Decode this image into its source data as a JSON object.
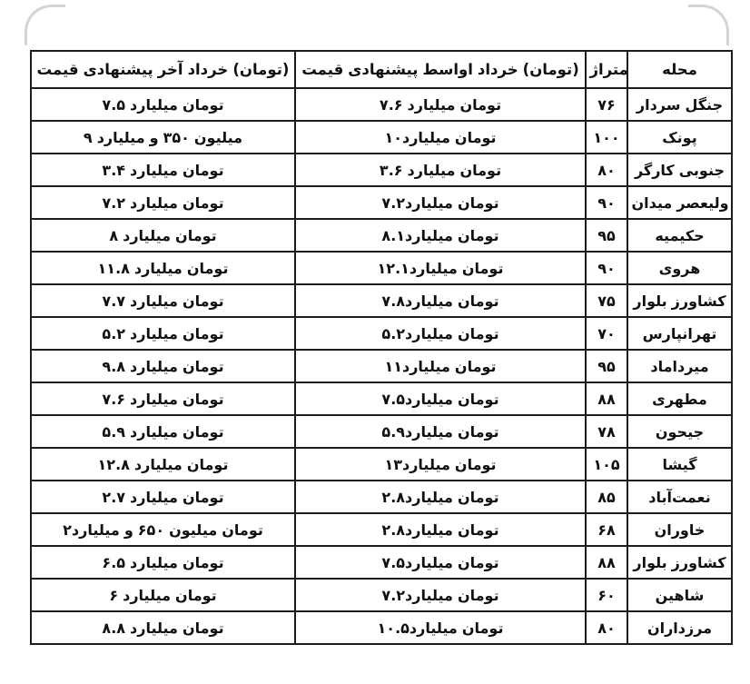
{
  "table": {
    "columns": [
      {
        "key": "neighborhood",
        "label": "محله"
      },
      {
        "key": "area",
        "label": "متراژ"
      },
      {
        "key": "price_mid",
        "label": "قیمت پیشنهادی اواسط خرداد (تومان)"
      },
      {
        "key": "price_end",
        "label": "قیمت پیشنهادی آخر خرداد (تومان)"
      }
    ],
    "rows": [
      {
        "neighborhood": "سردار جنگل",
        "area": "۷۶",
        "price_mid": "۷.۶ میلیارد تومان",
        "price_end": "۷.۵ میلیارد تومان"
      },
      {
        "neighborhood": "پونک",
        "area": "۱۰۰",
        "price_mid": "۱۰میلیارد تومان",
        "price_end": "۹ میلیارد و ۳۵۰ میلیون"
      },
      {
        "neighborhood": "کارگر جنوبی",
        "area": "۸۰",
        "price_mid": "۳.۶ میلیارد تومان",
        "price_end": "۳.۴ میلیارد تومان"
      },
      {
        "neighborhood": "میدان ولیعصر",
        "area": "۹۰",
        "price_mid": "۷.۲میلیارد تومان",
        "price_end": "۷.۲ میلیارد تومان"
      },
      {
        "neighborhood": "حکیمیه",
        "area": "۹۵",
        "price_mid": "۸.۱میلیارد تومان",
        "price_end": "۸ میلیارد تومان"
      },
      {
        "neighborhood": "هروی",
        "area": "۹۰",
        "price_mid": "۱۲.۱میلیارد تومان",
        "price_end": "۱۱.۸ میلیارد تومان"
      },
      {
        "neighborhood": "بلوار کشاورز",
        "area": "۷۵",
        "price_mid": "۷.۸میلیارد تومان",
        "price_end": "۷.۷ میلیارد تومان"
      },
      {
        "neighborhood": "تهرانپارس",
        "area": "۷۰",
        "price_mid": "۵.۲میلیارد تومان",
        "price_end": "۵.۲ میلیارد تومان"
      },
      {
        "neighborhood": "میرداماد",
        "area": "۹۵",
        "price_mid": "۱۱میلیارد تومان",
        "price_end": "۹.۸ میلیارد تومان"
      },
      {
        "neighborhood": "مطهری",
        "area": "۸۸",
        "price_mid": "۷.۵میلیارد تومان",
        "price_end": "۷.۶ میلیارد تومان"
      },
      {
        "neighborhood": "جیحون",
        "area": "۷۸",
        "price_mid": "۵.۹میلیارد تومان",
        "price_end": "۵.۹ میلیارد تومان"
      },
      {
        "neighborhood": "گیشا",
        "area": "۱۰۵",
        "price_mid": "۱۳میلیارد تومان",
        "price_end": "۱۲.۸ میلیارد تومان"
      },
      {
        "neighborhood": "نعمت‌آباد",
        "area": "۸۵",
        "price_mid": "۲.۸میلیارد تومان",
        "price_end": "۲.۷ میلیارد تومان"
      },
      {
        "neighborhood": "خاوران",
        "area": "۶۸",
        "price_mid": "۲.۸میلیارد تومان",
        "price_end": "۲میلیارد و ۶۵۰ میلیون تومان"
      },
      {
        "neighborhood": "بلوار کشاورز",
        "area": "۸۸",
        "price_mid": "۷.۵میلیارد تومان",
        "price_end": "۶.۵ میلیارد تومان"
      },
      {
        "neighborhood": "شاهین",
        "area": "۶۰",
        "price_mid": "۷.۲میلیارد تومان",
        "price_end": "۶ میلیارد تومان"
      },
      {
        "neighborhood": "مرزداران",
        "area": "۸۰",
        "price_mid": "۱۰.۵میلیارد تومان",
        "price_end": "۸.۸ میلیارد تومان"
      }
    ],
    "border_color": "#1c1c1c",
    "text_color": "#111111",
    "background_color": "#ffffff"
  }
}
